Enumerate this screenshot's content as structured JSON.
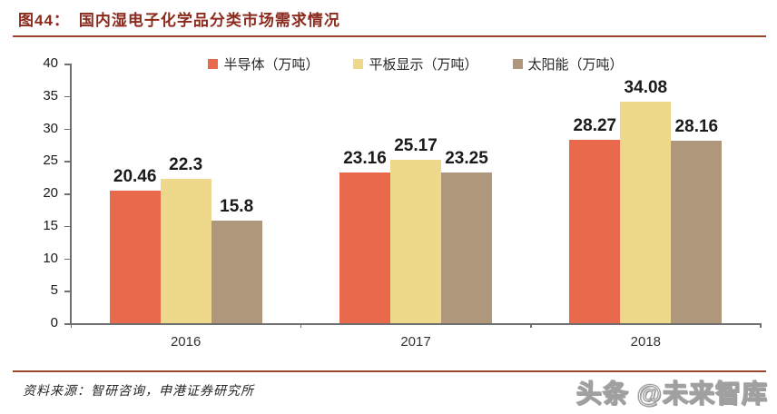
{
  "header": {
    "label": "图44：",
    "title": "国内湿电子化学品分类市场需求情况"
  },
  "colors": {
    "title_text": "#8C2A1E",
    "rule": "#99462B",
    "axis": "#6F6F6F",
    "value_label": "#1A1A1A",
    "series": [
      "#E8694B",
      "#EDD88C",
      "#AE977B"
    ]
  },
  "chart_data": {
    "type": "bar",
    "title": "国内湿电子化学品分类市场需求情况",
    "categories": [
      "2016",
      "2017",
      "2018"
    ],
    "series": [
      {
        "name": "半导体（万吨）",
        "color": "#E8694B",
        "values": [
          20.46,
          23.16,
          28.27
        ]
      },
      {
        "name": "平板显示（万吨）",
        "color": "#EDD88C",
        "values": [
          22.3,
          25.17,
          34.08
        ]
      },
      {
        "name": "太阳能（万吨）",
        "color": "#AE977B",
        "values": [
          15.8,
          23.25,
          28.16
        ]
      }
    ],
    "ylim": [
      0,
      40
    ],
    "ytick_step": 5,
    "grid": false,
    "legend_position": "top",
    "data_labels": true
  },
  "footer": {
    "source": "资料来源：智研咨询，申港证券研究所",
    "watermark": "头条 @未来智库"
  }
}
